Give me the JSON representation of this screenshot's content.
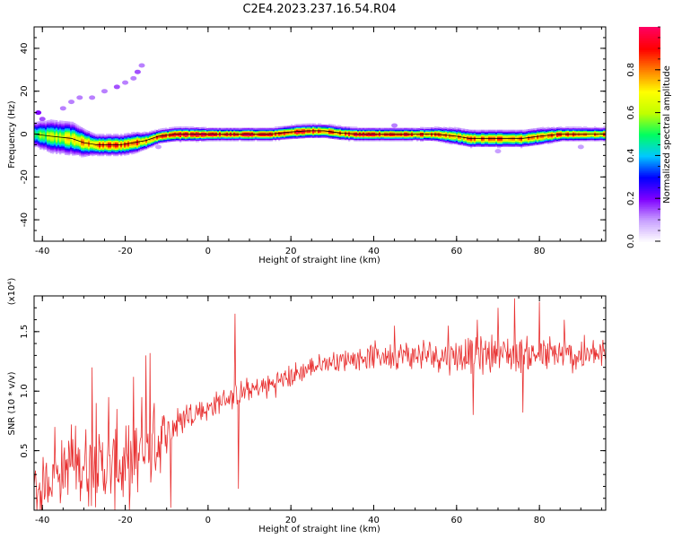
{
  "figure": {
    "title": "C2E4.2023.237.16.54.R04"
  },
  "chart_data": [
    {
      "type": "heatmap",
      "xlabel": "Height of straight line (km)",
      "ylabel": "Frequency (Hz)",
      "xlim": [
        -42,
        96
      ],
      "ylim": [
        -50,
        50
      ],
      "xticks": [
        -40,
        -20,
        0,
        20,
        40,
        60,
        80
      ],
      "xtick_labels": [
        "-40",
        "-20",
        "0",
        "20",
        "40",
        "60",
        "80"
      ],
      "yticks": [
        -40,
        -20,
        0,
        20,
        40
      ],
      "ytick_labels": [
        "-40",
        "-20",
        "0",
        "20",
        "40"
      ],
      "colorbar": {
        "label": "Normalized spectral amplitude",
        "range": [
          0,
          1
        ],
        "ticks": [
          0,
          0.2,
          0.4,
          0.6,
          0.8
        ],
        "tick_labels": [
          "0.0",
          "0.2",
          "0.4",
          "0.6",
          "0.8"
        ],
        "colormap": "rainbow",
        "colors": [
          "#ffffff",
          "#c8a0ff",
          "#7f00ff",
          "#0000ff",
          "#00c8ff",
          "#00ff60",
          "#c0ff00",
          "#ffff00",
          "#ff8000",
          "#ff0000",
          "#ff0060"
        ]
      },
      "ridge": {
        "x": [
          -42,
          -38,
          -33,
          -30,
          -27,
          -24,
          -21,
          -18,
          -15,
          -12,
          -8,
          -4,
          0,
          5,
          10,
          15,
          20,
          24,
          28,
          32,
          36,
          40,
          45,
          50,
          55,
          60,
          63,
          68,
          72,
          76,
          80,
          85,
          90,
          96
        ],
        "freq": [
          0,
          -1,
          -2,
          -4,
          -5,
          -5,
          -5,
          -4,
          -3,
          -1,
          0,
          0,
          0,
          0,
          0,
          0,
          1,
          1.5,
          1.5,
          0.5,
          0,
          0,
          0,
          0,
          0,
          -1,
          -2,
          -2,
          -2,
          -2,
          -1,
          0,
          0,
          0
        ],
        "width": [
          4,
          5,
          5,
          4,
          3,
          3,
          3,
          3,
          2.5,
          2,
          2,
          2,
          1.8,
          1.8,
          1.8,
          1.8,
          2,
          2,
          2,
          2,
          1.8,
          1.8,
          1.8,
          1.8,
          2,
          2.5,
          2.5,
          2.5,
          2.5,
          2.5,
          2.5,
          2,
          2,
          2
        ],
        "peak": [
          0.5,
          0.6,
          0.7,
          0.75,
          0.8,
          0.85,
          0.85,
          0.85,
          0.8,
          0.85,
          0.95,
          0.95,
          0.95,
          0.9,
          0.95,
          0.9,
          0.9,
          0.9,
          0.9,
          0.8,
          0.95,
          0.95,
          0.9,
          0.85,
          0.8,
          0.75,
          0.8,
          0.8,
          0.85,
          0.8,
          0.8,
          0.85,
          0.8,
          0.8
        ]
      },
      "faint_blobs": [
        {
          "x": -41,
          "freq": 10,
          "value": 0.2
        },
        {
          "x": -40,
          "freq": 7,
          "value": 0.15
        },
        {
          "x": -35,
          "freq": 12,
          "value": 0.12
        },
        {
          "x": -33,
          "freq": 15,
          "value": 0.12
        },
        {
          "x": -31,
          "freq": 17,
          "value": 0.12
        },
        {
          "x": -28,
          "freq": 17,
          "value": 0.12
        },
        {
          "x": -25,
          "freq": 20,
          "value": 0.12
        },
        {
          "x": -22,
          "freq": 22,
          "value": 0.15
        },
        {
          "x": -20,
          "freq": 24,
          "value": 0.12
        },
        {
          "x": -18,
          "freq": 26,
          "value": 0.12
        },
        {
          "x": -17,
          "freq": 29,
          "value": 0.15
        },
        {
          "x": -16,
          "freq": 32,
          "value": 0.12
        },
        {
          "x": -12,
          "freq": -6,
          "value": 0.1
        },
        {
          "x": 45,
          "freq": 4,
          "value": 0.12
        },
        {
          "x": 70,
          "freq": -8,
          "value": 0.1
        },
        {
          "x": 90,
          "freq": -6,
          "value": 0.1
        }
      ]
    },
    {
      "type": "line",
      "xlabel": "Height of straight line (km)",
      "ylabel": "SNR (10 * v/v)",
      "yscale_label": "(x10⁴)",
      "xlim": [
        -42,
        96
      ],
      "ylim": [
        0,
        1.8
      ],
      "xticks": [
        -40,
        -20,
        0,
        20,
        40,
        60,
        80
      ],
      "xtick_labels": [
        "-40",
        "-20",
        "0",
        "20",
        "40",
        "60",
        "80"
      ],
      "yticks": [
        0.5,
        1.0,
        1.5
      ],
      "ytick_labels": [
        "0.5",
        "1.0",
        "1.5"
      ],
      "series": [
        {
          "color": "#e83030",
          "points_per_km": 6,
          "trend": {
            "x": [
              -42,
              -35,
              -30,
              -25,
              -20,
              -15,
              -10,
              -5,
              0,
              5,
              10,
              15,
              20,
              25,
              30,
              40,
              50,
              60,
              70,
              80,
              96
            ],
            "y": [
              0.15,
              0.35,
              0.4,
              0.35,
              0.35,
              0.45,
              0.65,
              0.8,
              0.85,
              0.95,
              1.0,
              1.05,
              1.12,
              1.2,
              1.25,
              1.3,
              1.3,
              1.3,
              1.32,
              1.3,
              1.3
            ],
            "amp": [
              0.2,
              0.25,
              0.3,
              0.3,
              0.3,
              0.3,
              0.2,
              0.12,
              0.1,
              0.1,
              0.1,
              0.1,
              0.1,
              0.08,
              0.08,
              0.1,
              0.12,
              0.14,
              0.15,
              0.15,
              0.14
            ]
          },
          "spikes": [
            {
              "x": -37,
              "y": 0.7
            },
            {
              "x": -33,
              "y": 0.72
            },
            {
              "x": -28,
              "y": 1.2
            },
            {
              "x": -27,
              "y": 0.9
            },
            {
              "x": -24,
              "y": 0.95
            },
            {
              "x": -22,
              "y": 0.85
            },
            {
              "x": -18,
              "y": 1.12
            },
            {
              "x": -16,
              "y": 0.95
            },
            {
              "x": -15,
              "y": 1.3
            },
            {
              "x": -14,
              "y": 1.32
            },
            {
              "x": -13,
              "y": 0.9
            },
            {
              "x": -9,
              "y": 0.02
            },
            {
              "x": 6.5,
              "y": 1.65
            },
            {
              "x": 7.3,
              "y": 0.18
            },
            {
              "x": 45,
              "y": 1.55
            },
            {
              "x": 58,
              "y": 1.55
            },
            {
              "x": 64,
              "y": 0.8
            },
            {
              "x": 65,
              "y": 1.6
            },
            {
              "x": 70,
              "y": 1.7
            },
            {
              "x": 74,
              "y": 1.78
            },
            {
              "x": 76,
              "y": 0.82
            },
            {
              "x": 80,
              "y": 1.75
            },
            {
              "x": 86,
              "y": 1.6
            }
          ]
        }
      ]
    }
  ]
}
